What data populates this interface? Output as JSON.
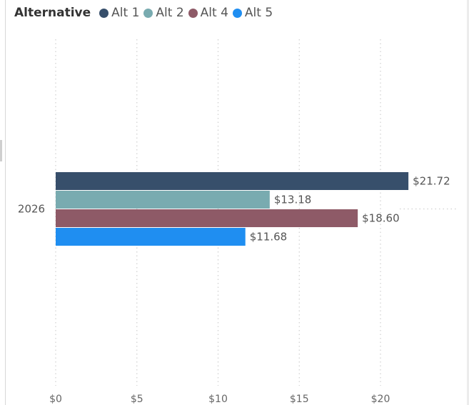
{
  "legend": {
    "title": "Alternative"
  },
  "chart_data": {
    "type": "bar",
    "orientation": "horizontal",
    "categories": [
      "2026"
    ],
    "series": [
      {
        "name": "Alt 1",
        "color": "#374f6b",
        "values": [
          21.72
        ],
        "label": "$21.72"
      },
      {
        "name": "Alt 2",
        "color": "#79abb0",
        "values": [
          13.18
        ],
        "label": "$13.18"
      },
      {
        "name": "Alt 4",
        "color": "#8e5a67",
        "values": [
          18.6
        ],
        "label": "$18.60"
      },
      {
        "name": "Alt 5",
        "color": "#1f8ef1",
        "values": [
          11.68
        ],
        "label": "$11.68"
      }
    ],
    "xlim": [
      0,
      23
    ],
    "x_ticks": [
      0,
      5,
      10,
      15,
      20
    ],
    "x_tick_labels": [
      "$0",
      "$5",
      "$10",
      "$15",
      "$20"
    ],
    "grid": true,
    "legend_position": "top-left"
  }
}
